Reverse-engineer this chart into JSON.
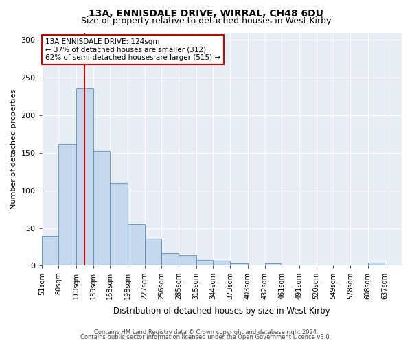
{
  "title1": "13A, ENNISDALE DRIVE, WIRRAL, CH48 6DU",
  "title2": "Size of property relative to detached houses in West Kirby",
  "xlabel": "Distribution of detached houses by size in West Kirby",
  "ylabel": "Number of detached properties",
  "footer1": "Contains HM Land Registry data © Crown copyright and database right 2024.",
  "footer2": "Contains public sector information licensed under the Open Government Licence v3.0.",
  "bar_color": "#c5d8ed",
  "bar_edge_color": "#5b8db8",
  "annotation_box_color": "#cc0000",
  "vline_color": "#cc0000",
  "bg_color": "#e8eef6",
  "annotation_line1": "13A ENNISDALE DRIVE: 124sqm",
  "annotation_line2": "← 37% of detached houses are smaller (312)",
  "annotation_line3": "62% of semi-detached houses are larger (515) →",
  "property_size_sqm": 124,
  "categories": [
    "51sqm",
    "80sqm",
    "110sqm",
    "139sqm",
    "168sqm",
    "198sqm",
    "227sqm",
    "256sqm",
    "285sqm",
    "315sqm",
    "344sqm",
    "373sqm",
    "403sqm",
    "432sqm",
    "461sqm",
    "491sqm",
    "520sqm",
    "549sqm",
    "578sqm",
    "608sqm",
    "637sqm"
  ],
  "bin_edges": [
    51,
    80,
    110,
    139,
    168,
    198,
    227,
    256,
    285,
    315,
    344,
    373,
    403,
    432,
    461,
    491,
    520,
    549,
    578,
    608,
    637,
    666
  ],
  "values": [
    40,
    162,
    236,
    153,
    110,
    55,
    36,
    17,
    14,
    8,
    7,
    3,
    0,
    3,
    0,
    0,
    0,
    0,
    0,
    4,
    0
  ],
  "ylim": [
    0,
    310
  ],
  "yticks": [
    0,
    50,
    100,
    150,
    200,
    250,
    300
  ],
  "title1_fontsize": 10,
  "title2_fontsize": 9,
  "ylabel_fontsize": 8,
  "xlabel_fontsize": 8.5,
  "tick_fontsize": 7,
  "footer_fontsize": 6,
  "annotation_fontsize": 7.5
}
